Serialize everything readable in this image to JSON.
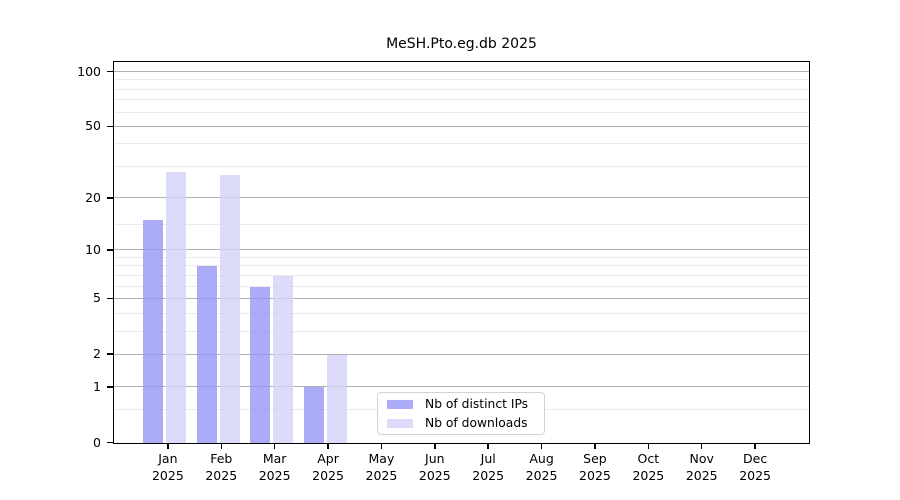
{
  "chart_data": {
    "type": "bar",
    "title": "MeSH.Pto.eg.db 2025",
    "x_months": [
      "Jan",
      "Feb",
      "Mar",
      "Apr",
      "May",
      "Jun",
      "Jul",
      "Aug",
      "Sep",
      "Oct",
      "Nov",
      "Dec"
    ],
    "x_year": "2025",
    "series": [
      {
        "name": "Nb of distinct IPs",
        "color": "#ababf8",
        "fill": "rgba(150,150,246,0.8)",
        "values": [
          15,
          8,
          6,
          1,
          0,
          0,
          0,
          0,
          0,
          0,
          0,
          0
        ]
      },
      {
        "name": "Nb of downloads",
        "color": "#dcdcfa",
        "fill": "rgba(211,211,249,0.8)",
        "values": [
          28,
          27,
          7,
          2,
          0,
          0,
          0,
          0,
          0,
          0,
          0,
          0
        ]
      }
    ],
    "y_axis": {
      "scale": "log1p",
      "tick_values": [
        0,
        1,
        2,
        5,
        10,
        20,
        50,
        100
      ],
      "tick_labels": [
        "0",
        "1",
        "2",
        "5",
        "10",
        "20",
        "50",
        "100"
      ],
      "minor_gridline_values": [
        0.5,
        3,
        4,
        6,
        7,
        8,
        9,
        14,
        30,
        40,
        60,
        70,
        80,
        90
      ],
      "ylim": [
        0,
        112
      ]
    },
    "grid": {
      "on": true,
      "major_color": "#b0b0b0",
      "minor_color": "#ebebeb"
    },
    "legend_position": "lower center inside plot"
  }
}
